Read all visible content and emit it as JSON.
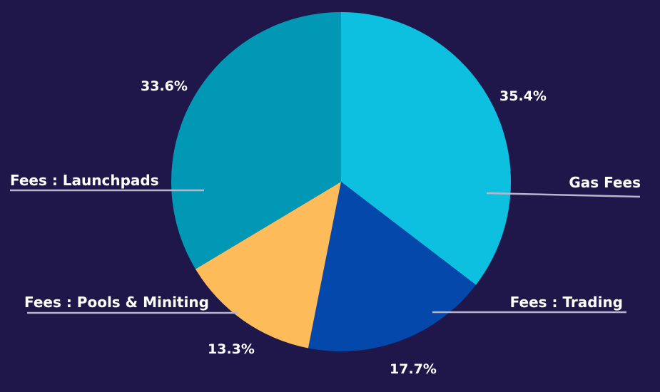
{
  "chart_data": {
    "type": "pie",
    "title": "",
    "series": [
      {
        "name": "Gas Fees",
        "value": 35.4,
        "label": "35.4%",
        "color": "#0dc0e0"
      },
      {
        "name": "Fees : Trading",
        "value": 17.7,
        "label": "17.7%",
        "color": "#0348aa"
      },
      {
        "name": "Fees : Pools & Miniting",
        "value": 13.3,
        "label": "13.3%",
        "color": "#fdbb5a"
      },
      {
        "name": "Fees : Launchpads",
        "value": 33.6,
        "label": "33.6%",
        "color": "#0098b5"
      }
    ],
    "start_angle_deg": 0,
    "direction": "clockwise"
  },
  "colors": {
    "background": "#1f174a",
    "label_text": "#ffffff",
    "leader_line": "#b9b6cc"
  }
}
